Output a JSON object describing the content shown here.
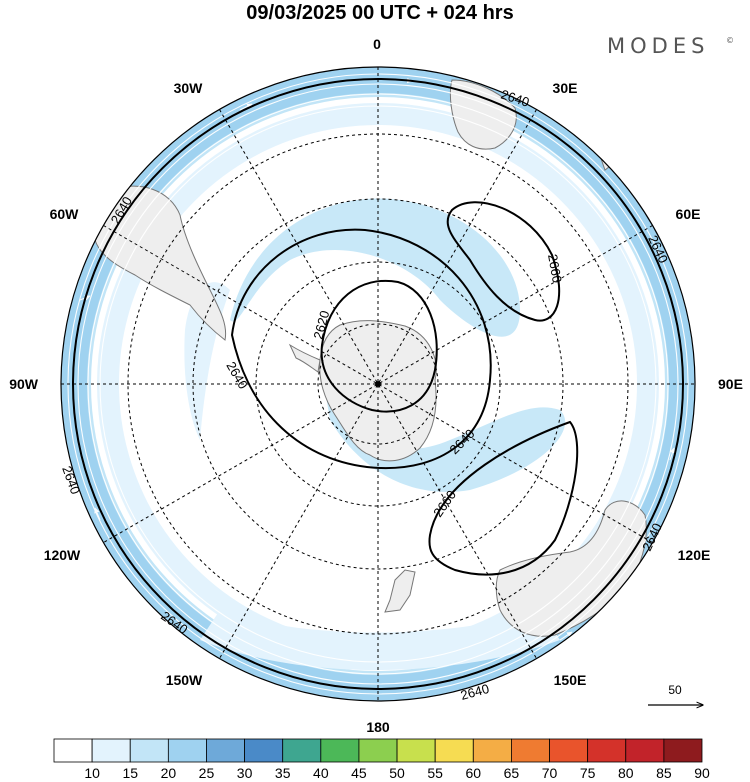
{
  "header": {
    "title": "09/03/2025  00 UTC  + 024 hrs",
    "brand": "MODES",
    "brand_mark": "©"
  },
  "longitude_labels": {
    "lon_0": "0",
    "lon_30e": "30E",
    "lon_60e": "60E",
    "lon_90e": "90E",
    "lon_120e": "120E",
    "lon_150e": "150E",
    "lon_180": "180",
    "lon_150w": "150W",
    "lon_120w": "120W",
    "lon_90w": "90W",
    "lon_60w": "60W",
    "lon_30w": "30W"
  },
  "contours": {
    "label_2620": "2620",
    "label_2640": "2640",
    "label_2660": "2660",
    "line_color": "#000000"
  },
  "reference_vector": {
    "label": "50"
  },
  "colorbar": {
    "ticks": [
      "10",
      "15",
      "20",
      "25",
      "30",
      "35",
      "40",
      "45",
      "50",
      "55",
      "60",
      "65",
      "70",
      "75",
      "80",
      "85",
      "90"
    ],
    "colors": [
      "#ffffff",
      "#e3f3fd",
      "#c2e5f7",
      "#9fd2f0",
      "#6ea9d9",
      "#4a8ac8",
      "#3ea690",
      "#4cb858",
      "#8ccf4f",
      "#c8e04d",
      "#f6dc52",
      "#f4ad45",
      "#ef7b31",
      "#e9542c",
      "#d4322a",
      "#c2232a",
      "#8e1b1e"
    ]
  },
  "colors": {
    "land": "#eeeeee",
    "coast": "#777777",
    "grid": "#000000"
  }
}
